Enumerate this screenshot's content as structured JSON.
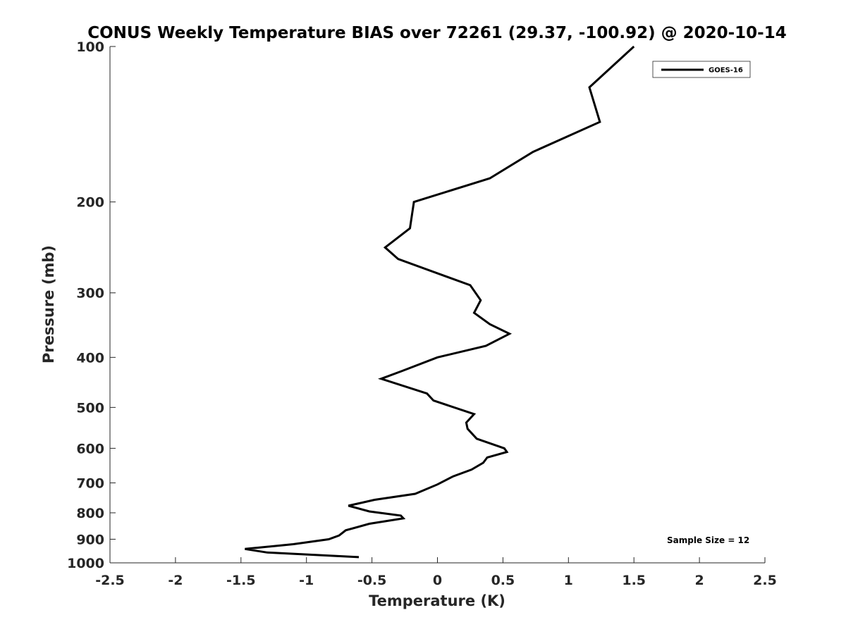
{
  "chart_data": {
    "type": "line",
    "title": "CONUS Weekly Temperature BIAS over 72261 (29.37, -100.92) @ 2020-10-14",
    "xlabel": "Temperature (K)",
    "ylabel": "Pressure (mb)",
    "xlim": [
      -2.5,
      2.5
    ],
    "ylim": [
      100,
      1000
    ],
    "yscale": "log",
    "y_reversed": true,
    "x_ticks": [
      "-2.5",
      "-2",
      "-1.5",
      "-1",
      "-0.5",
      "0",
      "0.5",
      "1",
      "1.5",
      "2",
      "2.5"
    ],
    "y_ticks": [
      "100",
      "200",
      "300",
      "400",
      "500",
      "600",
      "700",
      "800",
      "900",
      "1000"
    ],
    "grid": false,
    "legend_position": "top-right",
    "series": [
      {
        "name": "GOES-16",
        "color": "#000000",
        "x": [
          -0.6,
          -1.3,
          -1.47,
          -1.1,
          -0.83,
          -0.75,
          -0.7,
          -0.52,
          -0.26,
          -0.28,
          -0.52,
          -0.68,
          -0.48,
          -0.17,
          0.0,
          0.12,
          0.26,
          0.35,
          0.38,
          0.53,
          0.51,
          0.3,
          0.23,
          0.22,
          0.28,
          -0.03,
          -0.08,
          -0.43,
          -0.27,
          0.0,
          0.37,
          0.55,
          0.4,
          0.28,
          0.33,
          0.25,
          -0.3,
          -0.4,
          -0.21,
          -0.18,
          0.4,
          0.73,
          1.24,
          1.16,
          1.5
        ],
        "y": [
          975,
          955,
          940,
          920,
          900,
          885,
          865,
          840,
          820,
          810,
          795,
          775,
          755,
          735,
          705,
          680,
          660,
          640,
          625,
          610,
          600,
          575,
          550,
          535,
          515,
          485,
          470,
          440,
          425,
          400,
          380,
          360,
          345,
          328,
          310,
          290,
          258,
          245,
          225,
          200,
          180,
          160,
          140,
          120,
          100
        ]
      }
    ],
    "annotations": [
      "Sample Size = 12"
    ]
  }
}
